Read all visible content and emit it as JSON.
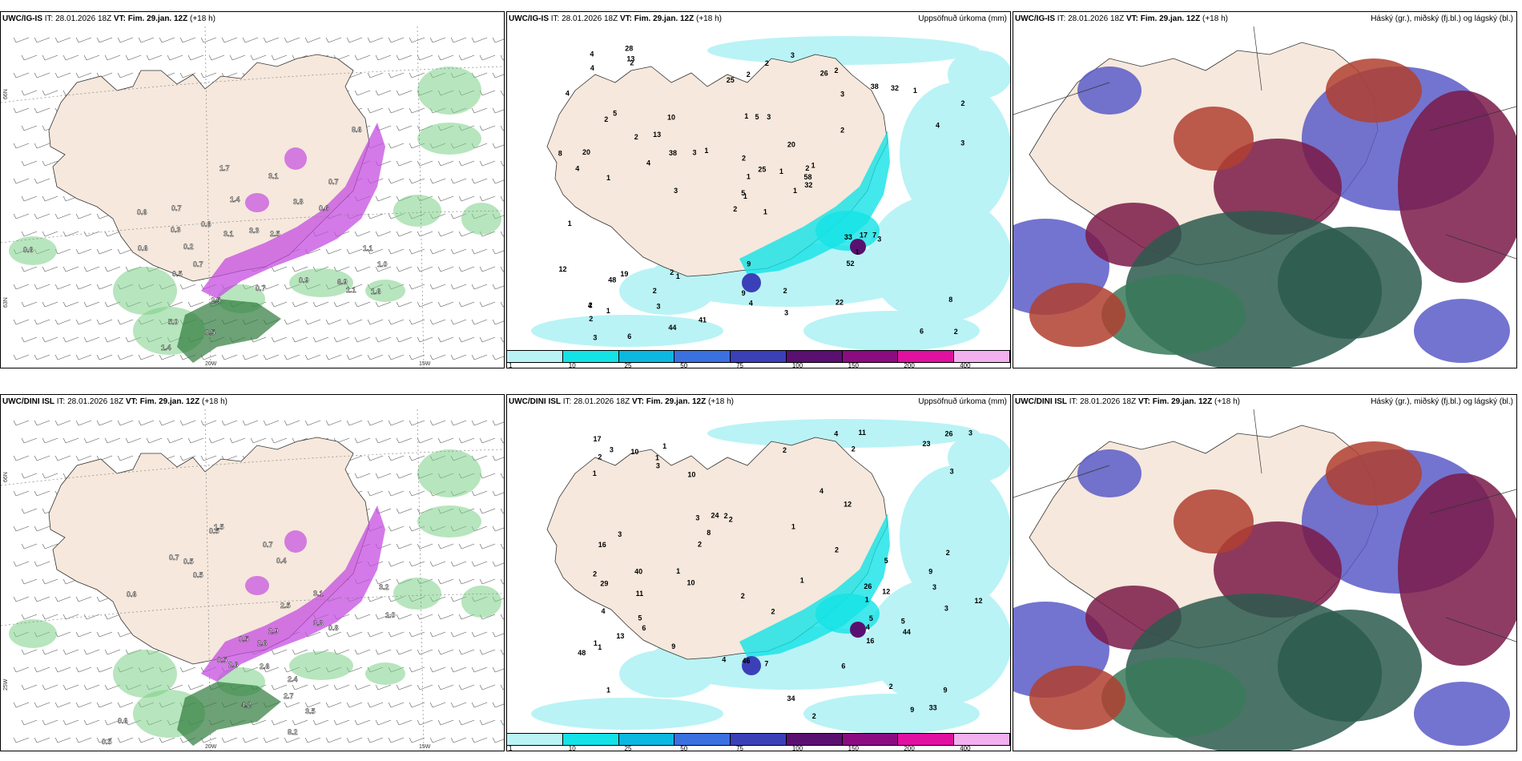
{
  "colors": {
    "land": "#f6e8dc",
    "sea": "#ffffff",
    "precip_low": "#b9f3f6",
    "precip_mid": "#13e2e6",
    "snow_green": "#7ccf87",
    "snow_pink": "#c44de0",
    "cloud_high": "#7a1a48",
    "cloud_mid": "#2c5a4e",
    "cloud_low": "#5b5cc8"
  },
  "panels": [
    {
      "model": "UWC/IG-IS",
      "it": "IT: 28.01.2026 18Z",
      "vt_label": "VT:",
      "vt": "Fim. 29.jan. 12Z",
      "lead": "(+18 h)",
      "right": "",
      "lat1": "66N",
      "lat2": "64N",
      "lat3": "63N",
      "lon1": "20W",
      "lon2": "15W",
      "lat_r1": "66N",
      "lat_r2": "64N",
      "labels": [
        "0.6",
        "0.7",
        "0.3",
        "0.2",
        "0.6",
        "3.1",
        "3.3",
        "2.5",
        "0.5",
        "1.1",
        "1.0",
        "0.9",
        "0.7",
        "6.9",
        "1.6",
        "1.1",
        "5.0",
        "2.5",
        "0.5",
        "1.4",
        "0.7",
        "0.6",
        "3.1",
        "3.8",
        "0.6",
        "0.7",
        "8.6",
        "1.4",
        "1.7",
        "0.6"
      ]
    },
    {
      "model": "UWC/IG-IS",
      "it": "IT: 28.01.2026 18Z",
      "vt_label": "VT:",
      "vt": "Fim. 29.jan. 12Z",
      "lead": "(+18 h)",
      "right": "Uppsöfnuð úrkoma (mm)",
      "labels": [
        "1",
        "2",
        "1",
        "2",
        "2",
        "1",
        "2",
        "3",
        "3",
        "1",
        "2",
        "2",
        "1",
        "2",
        "2",
        "2",
        "6",
        "1",
        "20",
        "19",
        "1",
        "2",
        "3",
        "5",
        "1",
        "3",
        "5",
        "2",
        "4",
        "33",
        "3",
        "5",
        "9",
        "1",
        "10",
        "38",
        "2",
        "6",
        "8",
        "7",
        "3",
        "3",
        "4",
        "52",
        "44",
        "8",
        "58",
        "3",
        "4",
        "32",
        "48",
        "4",
        "4",
        "1",
        "22",
        "2",
        "13",
        "4",
        "2",
        "1",
        "2",
        "3",
        "20",
        "13",
        "32",
        "28",
        "26",
        "25",
        "25",
        "12",
        "9",
        "41",
        "17",
        "38",
        "4",
        "4",
        "2",
        "1",
        "2",
        "3",
        "1",
        "1"
      ],
      "legend": [
        "1",
        "10",
        "25",
        "50",
        "75",
        "100",
        "150",
        "200",
        "400"
      ]
    },
    {
      "model": "UWC/IG-IS",
      "it": "IT: 28.01.2026 18Z",
      "vt_label": "VT:",
      "vt": "Fim. 29.jan. 12Z",
      "lead": "(+18 h)",
      "right": "Háský (gr.), miðský (fj.bl.) og lágský (bl.)"
    },
    {
      "model": "UWC/DINI ISL",
      "it": "IT: 28.01.2026 18Z",
      "vt_label": "VT:",
      "vt": "Fim. 29.jan. 12Z",
      "lead": "(+18 h)",
      "right": "",
      "lat1": "66N",
      "lat2": "64N",
      "lat3": "25W",
      "lon1": "20W",
      "lon2": "15W",
      "lat_r1": "66N",
      "lat_r2": "64N",
      "labels": [
        "0.7",
        "0.5",
        "1.5",
        "0.7",
        "0.4",
        "2.6",
        "0.5",
        "0.5",
        "3.3",
        "0.8",
        "2.5",
        "0.6",
        "2.9",
        "0.5",
        "2.6",
        "0.5",
        "4.2",
        "2.4",
        "2.7",
        "3.5",
        "8.2",
        "0.6",
        "0.5",
        "2.6",
        "3.1",
        "1.0",
        "3.2"
      ]
    },
    {
      "model": "UWC/DINI ISL",
      "it": "IT: 28.01.2026 18Z",
      "vt_label": "VT:",
      "vt": "Fim. 29.jan. 12Z",
      "lead": "(+18 h)",
      "right": "Uppsöfnuð úrkoma (mm)",
      "labels": [
        "1",
        "3",
        "1",
        "1",
        "2",
        "2",
        "1",
        "2",
        "3",
        "2",
        "1",
        "2",
        "2",
        "9",
        "4",
        "2",
        "2",
        "1",
        "2",
        "6",
        "3",
        "23",
        "2",
        "3",
        "4",
        "1",
        "5",
        "29",
        "3",
        "5",
        "34",
        "6",
        "8",
        "10",
        "9",
        "44",
        "4",
        "40",
        "7",
        "13",
        "3",
        "11",
        "33",
        "46",
        "5",
        "9",
        "48",
        "3",
        "2",
        "16",
        "12",
        "24",
        "26",
        "26",
        "16",
        "9",
        "12",
        "17",
        "11",
        "10",
        "12",
        "10",
        "1",
        "4",
        "2",
        "3",
        "2",
        "5",
        "1",
        "1",
        "4"
      ],
      "legend": [
        "1",
        "10",
        "25",
        "50",
        "75",
        "100",
        "150",
        "200",
        "400"
      ]
    },
    {
      "model": "UWC/DINI ISL",
      "it": "IT: 28.01.2026 18Z",
      "vt_label": "VT:",
      "vt": "Fim. 29.jan. 12Z",
      "lead": "(+18 h)",
      "right": "Háský (gr.), miðský (fj.bl.) og lágský (bl.)"
    }
  ]
}
